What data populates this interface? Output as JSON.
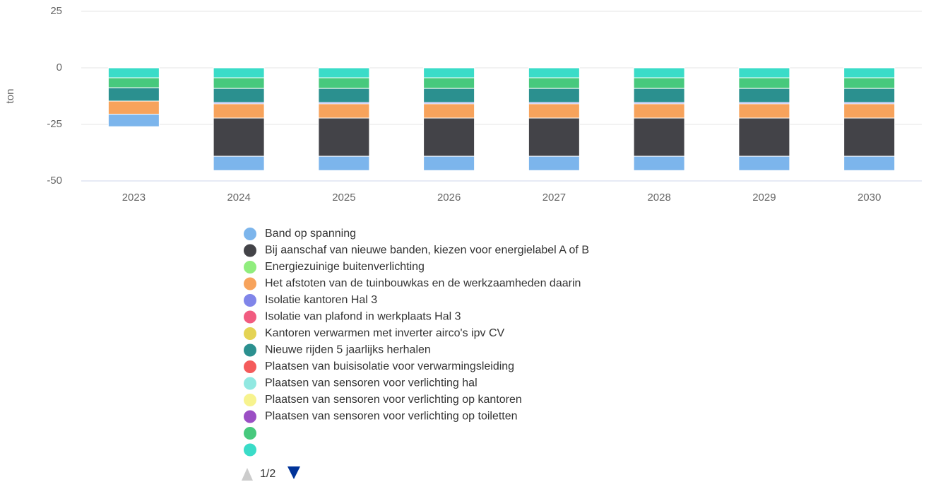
{
  "chart_data": {
    "type": "bar",
    "stacked": true,
    "y_axis_label": "ton",
    "categories": [
      "2023",
      "2024",
      "2025",
      "2026",
      "2027",
      "2028",
      "2029",
      "2030"
    ],
    "ylim": [
      -50,
      25
    ],
    "yticks": [
      -50,
      -25,
      0,
      25
    ],
    "grid": true,
    "series": [
      {
        "name": "Band op spanning",
        "color": "#7cb5ec",
        "values": [
          -5.5,
          -6.3,
          -6.3,
          -6.3,
          -6.3,
          -6.3,
          -6.3,
          -6.3
        ]
      },
      {
        "name": "Bij aanschaf van nieuwe banden, kiezen voor energielabel A of B",
        "color": "#434348",
        "values": [
          0,
          -16.9,
          -16.9,
          -16.9,
          -16.9,
          -16.9,
          -16.9,
          -16.9
        ]
      },
      {
        "name": "Energiezuinige buitenverlichting",
        "color": "#90ed7d",
        "values": [
          0,
          0,
          0,
          0,
          0,
          0,
          0,
          0
        ]
      },
      {
        "name": "Het afstoten van de tuinbouwkas en de werkzaamheden daarin",
        "color": "#f7a35c",
        "values": [
          -5.8,
          -6.3,
          -6.3,
          -6.3,
          -6.3,
          -6.3,
          -6.3,
          -6.3
        ]
      },
      {
        "name": "Isolatie kantoren Hal 3",
        "color": "#8085e9",
        "values": [
          0,
          -0.6,
          -0.6,
          -0.6,
          -0.6,
          -0.6,
          -0.6,
          -0.6
        ]
      },
      {
        "name": "Isolatie van plafond in werkplaats Hal 3",
        "color": "#f15c80",
        "values": [
          0,
          0,
          0,
          0,
          0,
          0,
          0,
          0
        ]
      },
      {
        "name": "Kantoren verwarmen met inverter airco's ipv CV",
        "color": "#e4d354",
        "values": [
          0,
          0,
          0,
          0,
          0,
          0,
          0,
          0
        ]
      },
      {
        "name": "Nieuwe rijden 5 jaarlijks herhalen",
        "color": "#2b908f",
        "values": [
          -5.9,
          -6.2,
          -6.2,
          -6.2,
          -6.2,
          -6.2,
          -6.2,
          -6.2
        ]
      },
      {
        "name": "Plaatsen van buisisolatie voor verwarmingsleiding",
        "color": "#f45b5b",
        "values": [
          0,
          0,
          0,
          0,
          0,
          0,
          0,
          0
        ]
      },
      {
        "name": "Plaatsen van sensoren voor verlichting hal",
        "color": "#91e8e1",
        "values": [
          0,
          0,
          0,
          0,
          0,
          0,
          0,
          0
        ]
      },
      {
        "name": "Plaatsen van sensoren voor verlichting op kantoren",
        "color": "#f7f38e",
        "values": [
          0,
          0,
          0,
          0,
          0,
          0,
          0,
          0
        ]
      },
      {
        "name": "Plaatsen van sensoren voor verlichting op toiletten",
        "color": "#9b4fc4",
        "values": [
          0,
          0,
          0,
          0,
          0,
          0,
          0,
          0
        ]
      },
      {
        "color": "#47c97d",
        "values": [
          -4.4,
          -4.7,
          -4.7,
          -4.7,
          -4.7,
          -4.7,
          -4.7,
          -4.7
        ]
      },
      {
        "color": "#3adcc8",
        "values": [
          -4.4,
          -4.4,
          -4.4,
          -4.4,
          -4.4,
          -4.4,
          -4.4,
          -4.4
        ]
      }
    ],
    "legend_page": "1/2"
  }
}
